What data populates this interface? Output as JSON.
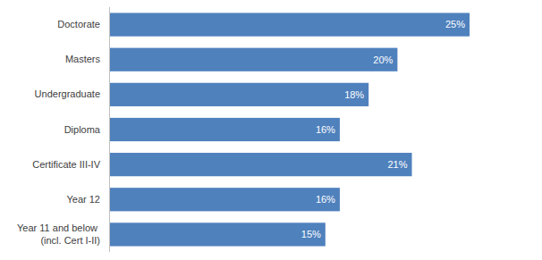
{
  "chart_data": {
    "type": "bar",
    "orientation": "horizontal",
    "categories": [
      "Doctorate",
      "Masters",
      "Undergraduate",
      "Diploma",
      "Certificate III-IV",
      "Year 12",
      "Year 11 and below (incl. Cert I-II)"
    ],
    "values": [
      25,
      20,
      18,
      16,
      21,
      16,
      15
    ],
    "value_labels": [
      "25%",
      "20%",
      "18%",
      "16%",
      "21%",
      "16%",
      "15%"
    ],
    "color": "#4f81bd",
    "xlim": [
      0,
      25
    ],
    "grid": false,
    "data_labels": true,
    "tick_labels": "y"
  }
}
